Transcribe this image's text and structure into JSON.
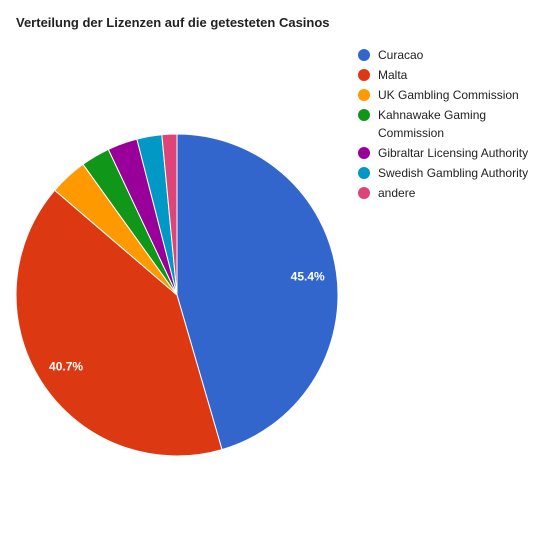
{
  "chart_data": {
    "type": "pie",
    "title": "Verteilung der Lizenzen auf die getesteten Casinos",
    "legend_position": "right",
    "series": [
      {
        "name": "Curacao",
        "value": 45.4,
        "color": "#3366cc",
        "label": "45.4%"
      },
      {
        "name": "Malta",
        "value": 40.7,
        "color": "#dc3912",
        "label": "40.7%"
      },
      {
        "name": "UK Gambling Commission",
        "value": 3.8,
        "color": "#ff9900",
        "label": ""
      },
      {
        "name": "Kahnawake Gaming Commission",
        "value": 2.9,
        "color": "#109618",
        "label": ""
      },
      {
        "name": "Gibraltar Licensing Authority",
        "value": 3.0,
        "color": "#990099",
        "label": ""
      },
      {
        "name": "Swedish Gambling Authority",
        "value": 2.5,
        "color": "#0099c6",
        "label": ""
      },
      {
        "name": "andere",
        "value": 1.5,
        "color": "#dd4477",
        "label": ""
      }
    ]
  }
}
